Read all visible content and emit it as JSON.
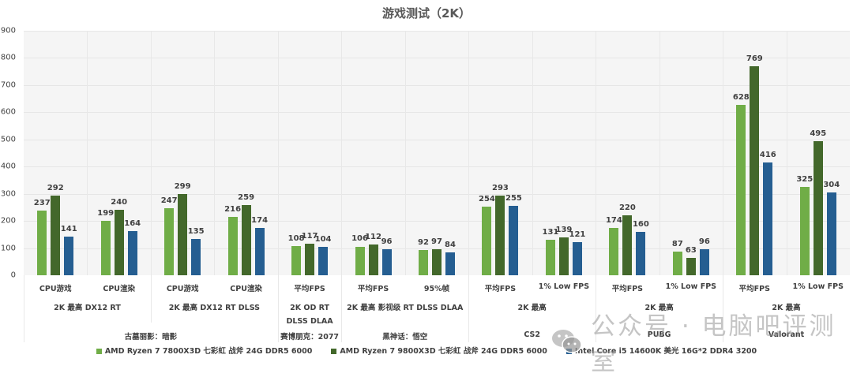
{
  "chart_data": {
    "type": "bar",
    "title": "游戏测试（2K）",
    "xlabel": "",
    "ylabel": "",
    "ylim": [
      0,
      900
    ],
    "yticks": [
      0,
      100,
      200,
      300,
      400,
      500,
      600,
      700,
      800,
      900
    ],
    "grid": true,
    "legend_position": "bottom",
    "categories": [
      {
        "label": "CPU游戏",
        "setting": "2K 最高 DX12 RT",
        "game": "古墓丽影：暗影"
      },
      {
        "label": "CPU渲染",
        "setting": "2K 最高 DX12 RT",
        "game": "古墓丽影：暗影"
      },
      {
        "label": "CPU游戏",
        "setting": "2K 最高 DX12 RT DLSS",
        "game": "古墓丽影：暗影"
      },
      {
        "label": "CPU渲染",
        "setting": "2K 最高 DX12 RT DLSS",
        "game": "古墓丽影：暗影"
      },
      {
        "label": "平均FPS",
        "setting": "2K OD RT DLSS DLAA",
        "game": "赛博朋克：2077"
      },
      {
        "label": "平均FPS",
        "setting": "2K 最高 影视级 RT DLSS DLAA",
        "game": "黑神话：悟空"
      },
      {
        "label": "95%帧",
        "setting": "2K 最高 影视级 RT DLSS DLAA",
        "game": "黑神话：悟空"
      },
      {
        "label": "平均FPS",
        "setting": "2K 最高",
        "game": "CS2"
      },
      {
        "label": "1% Low FPS",
        "setting": "2K 最高",
        "game": "CS2"
      },
      {
        "label": "平均FPS",
        "setting": "2K 最高",
        "game": "PUBG"
      },
      {
        "label": "1% Low FPS",
        "setting": "2K 最高",
        "game": "PUBG"
      },
      {
        "label": "平均FPS",
        "setting": "2K 最高",
        "game": "Valorant"
      },
      {
        "label": "1% Low FPS",
        "setting": "2K 最高",
        "game": "Valorant"
      }
    ],
    "series": [
      {
        "name": "AMD Ryzen 7 7800X3D 七彩虹 战斧 24G DDR5 6000",
        "color": "#70ad47",
        "values": [
          237,
          199,
          247,
          216,
          108,
          106,
          92,
          254,
          131,
          174,
          87,
          628,
          325
        ]
      },
      {
        "name": "AMD Ryzen 7 9800X3D 七彩虹 战斧 24G DDR5 6000",
        "color": "#43682b",
        "values": [
          292,
          240,
          299,
          259,
          117,
          112,
          97,
          293,
          139,
          220,
          63,
          769,
          495
        ]
      },
      {
        "name": "Intel Core i5 14600K 美光 16G*2 DDR4 3200",
        "color": "#255e91",
        "values": [
          141,
          164,
          135,
          174,
          104,
          96,
          84,
          255,
          121,
          160,
          96,
          416,
          304
        ]
      }
    ],
    "setting_groups": [
      {
        "label": "2K 最高 DX12 RT",
        "start": 0,
        "span": 2
      },
      {
        "label": "2K 最高 DX12 RT DLSS",
        "start": 2,
        "span": 2
      },
      {
        "label": "2K OD RT DLSS DLAA",
        "start": 4,
        "span": 1
      },
      {
        "label": "2K 最高 影视级 RT DLSS DLAA",
        "start": 5,
        "span": 2
      },
      {
        "label": "2K 最高",
        "start": 7,
        "span": 2
      },
      {
        "label": "2K 最高",
        "start": 9,
        "span": 2
      },
      {
        "label": "2K 最高",
        "start": 11,
        "span": 2
      }
    ],
    "game_groups": [
      {
        "label": "古墓丽影：暗影",
        "start": 0,
        "span": 4
      },
      {
        "label": "赛博朋克：2077",
        "start": 4,
        "span": 1
      },
      {
        "label": "黑神话：悟空",
        "start": 5,
        "span": 2
      },
      {
        "label": "CS2",
        "start": 7,
        "span": 2
      },
      {
        "label": "PUBG",
        "start": 9,
        "span": 2
      },
      {
        "label": "Valorant",
        "start": 11,
        "span": 2
      }
    ]
  },
  "watermark": {
    "text": "公众号 · 电脑吧评测室",
    "icon": "wechat-icon"
  }
}
